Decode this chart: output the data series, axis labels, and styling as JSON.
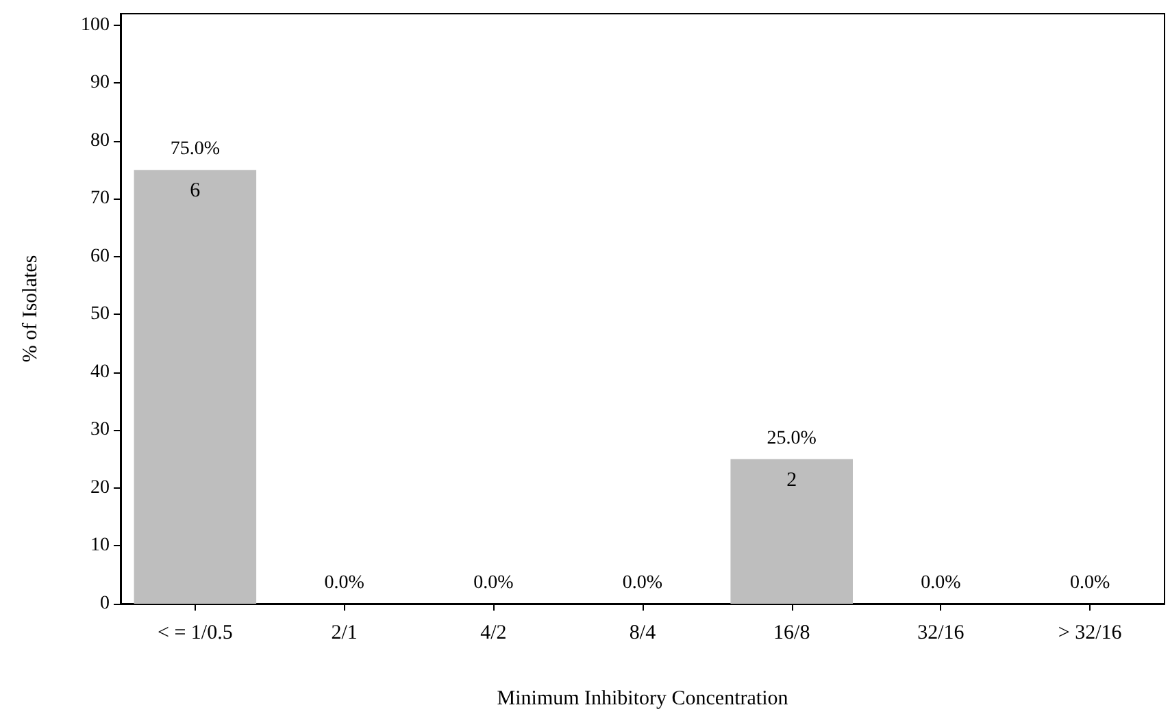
{
  "chart_data": {
    "type": "bar",
    "xlabel": "Minimum Inhibitory Concentration",
    "ylabel": "% of Isolates",
    "categories": [
      "< = 1/0.5",
      "2/1",
      "4/2",
      "8/4",
      "16/8",
      "32/16",
      "> 32/16"
    ],
    "values": [
      75,
      0,
      0,
      0,
      25,
      0,
      0
    ],
    "value_labels": [
      "75.0%",
      "0.0%",
      "0.0%",
      "0.0%",
      "25.0%",
      "0.0%",
      "0.0%"
    ],
    "color": "#bebebe",
    "annotations": [
      {
        "text": "6",
        "x": "< = 1/0.5",
        "y": 75
      },
      {
        "text": "2",
        "x": "16/8",
        "y": 25
      }
    ],
    "ylim": [
      0,
      102
    ],
    "yticks": [
      0,
      10,
      20,
      30,
      40,
      50,
      60,
      70,
      80,
      90,
      100
    ],
    "grid": false
  }
}
